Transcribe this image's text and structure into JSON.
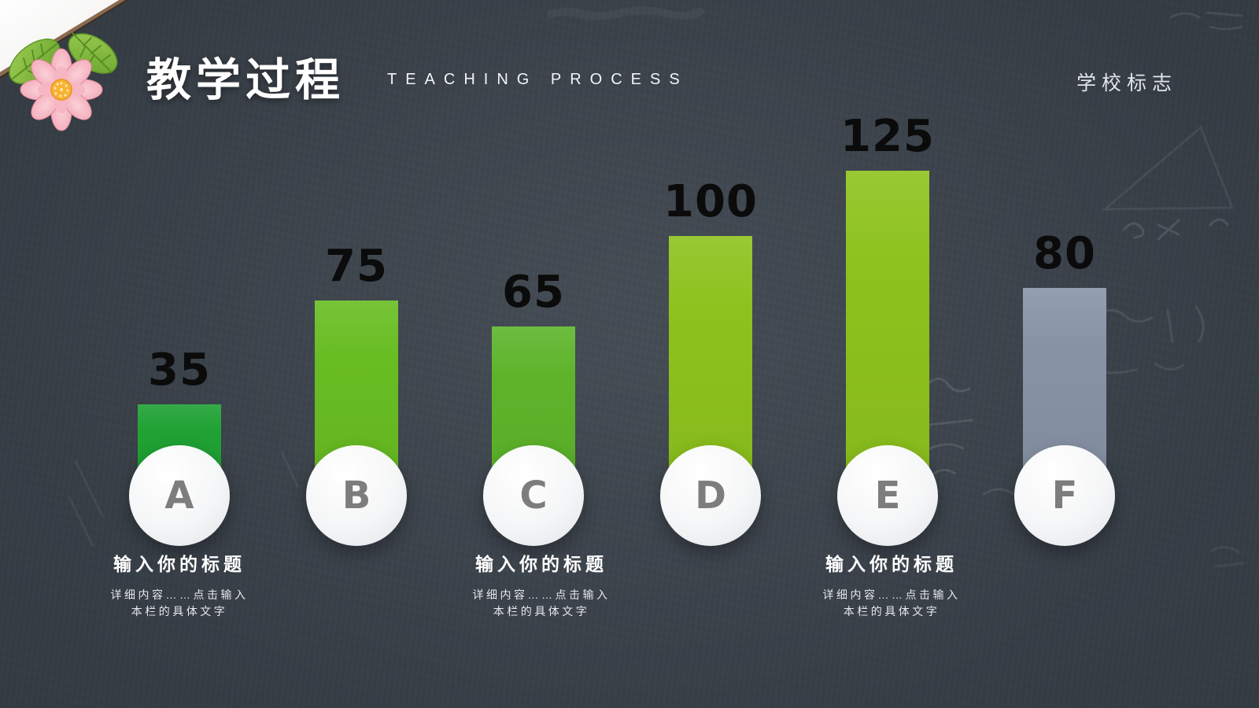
{
  "slide": {
    "title": "教学过程",
    "subtitle": "TEACHING PROCESS",
    "logo_label": "学校标志"
  },
  "chart_data": {
    "type": "bar",
    "title": "教学过程 (Teaching Process)",
    "categories": [
      "A",
      "B",
      "C",
      "D",
      "E",
      "F"
    ],
    "values": [
      35,
      75,
      65,
      100,
      125,
      80
    ],
    "bar_colors": [
      "#1fa133",
      "#68bd22",
      "#5db42a",
      "#8dc21d",
      "#8dc21d",
      "#8793a5"
    ],
    "xlabel": "",
    "ylabel": "",
    "ylim": [
      0,
      135
    ],
    "grid": false,
    "legend": false,
    "value_labels": [
      35,
      75,
      65,
      100,
      125,
      80
    ]
  },
  "captions": [
    {
      "title": "输入你的标题",
      "line1": "详细内容……点击输入",
      "line2": "本栏的具体文字"
    },
    {
      "title": "输入你的标题",
      "line1": "详细内容……点击输入",
      "line2": "本栏的具体文字"
    },
    {
      "title": "输入你的标题",
      "line1": "详细内容……点击输入",
      "line2": "本栏的具体文字"
    }
  ],
  "colors": {
    "background": "#343b43",
    "title_text": "#ffffff",
    "value_label_text": "#0b0b0b",
    "circle_fill": "#f5f6f7",
    "circle_letter": "#7d7d7d",
    "accent_green_dark": "#1fa133",
    "accent_green_mid": "#68bd22",
    "accent_green_light": "#8dc21d",
    "neutral_gray_bar": "#8793a5"
  }
}
